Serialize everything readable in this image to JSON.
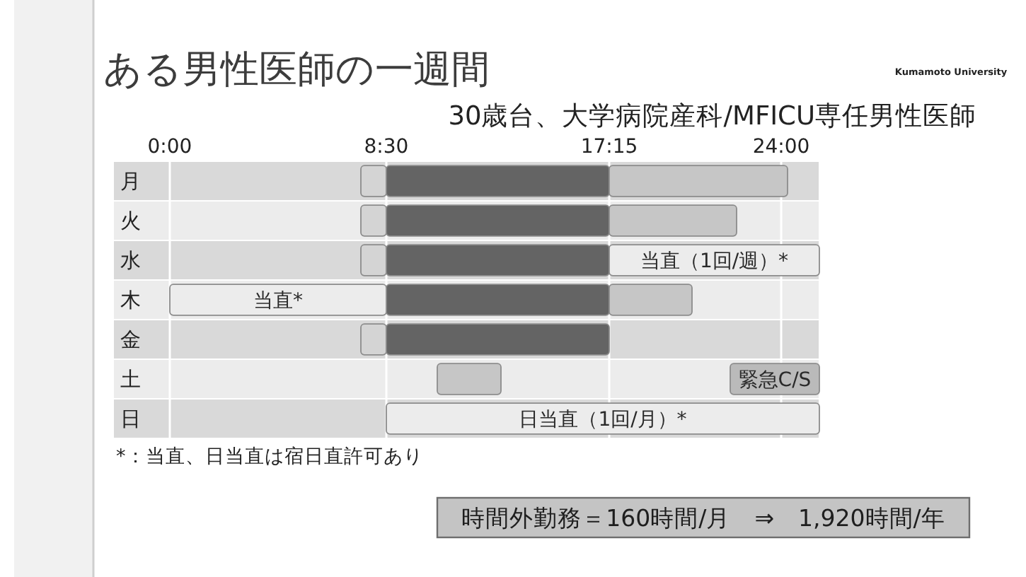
{
  "chart_data": {
    "type": "bar",
    "orientation": "horizontal",
    "title": "ある男性医師の一週間",
    "subtitle": "30歳台、大学病院産科/MFICU専任男性医師",
    "categories": [
      "月",
      "火",
      "水",
      "木",
      "金",
      "土",
      "日"
    ],
    "series": [
      {
        "color": "#d4d4d4",
        "base": [
          7.5,
          7.5,
          7.5,
          null,
          7.5,
          null,
          null
        ],
        "values": [
          1,
          1,
          1,
          null,
          1,
          null,
          null
        ]
      },
      {
        "color": "#646464",
        "base": [
          8.5,
          8.5,
          8.5,
          8.5,
          8.5,
          null,
          null
        ],
        "values": [
          8.75,
          8.75,
          8.75,
          8.75,
          8.75,
          null,
          null
        ]
      },
      {
        "color": "#c6c6c6",
        "base": [
          17.25,
          17.25,
          null,
          17.25,
          null,
          10.5,
          null
        ],
        "values": [
          7,
          5,
          null,
          3.25,
          null,
          2.5,
          null
        ]
      },
      {
        "color": "#ececec",
        "base": [
          null,
          null,
          17.25,
          0,
          null,
          null,
          8.5
        ],
        "values": [
          null,
          null,
          8.25,
          8.5,
          null,
          null,
          17
        ]
      },
      {
        "color": "#bababa",
        "base": [
          null,
          null,
          null,
          null,
          null,
          22,
          null
        ],
        "values": [
          null,
          null,
          null,
          null,
          null,
          3.5,
          null
        ]
      }
    ],
    "xlim": [
      0,
      25.5
    ],
    "xticks": [
      {
        "value": 0,
        "label": "0:00"
      },
      {
        "value": 8.5,
        "label": "8:30"
      },
      {
        "value": 17.25,
        "label": "17:15"
      },
      {
        "value": 24,
        "label": "24:00"
      }
    ],
    "grid": "x",
    "annotations": [
      {
        "text": "当直（1回/週）*",
        "x": 21.375,
        "y": "水"
      },
      {
        "text": "当直*",
        "x": 4.25,
        "y": "木"
      },
      {
        "text": "緊急C/S",
        "x": 23.75,
        "y": "土"
      },
      {
        "text": "日当直（1回/月）*",
        "x": 17,
        "y": "日"
      },
      "*：当直、日当直は宿日直許可あり",
      "時間外勤務＝160時間/月　⇒　1,920時間/年",
      "Kumamoto University"
    ]
  }
}
